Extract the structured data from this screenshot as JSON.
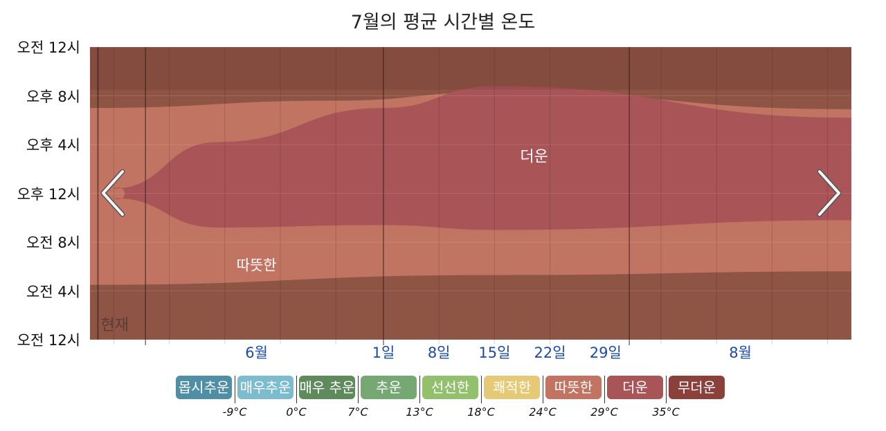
{
  "title": "7월의 평균 시간별 온도",
  "chart_data": {
    "type": "heatmap",
    "title": "7월의 평균 시간별 온도",
    "y_axis": {
      "range_hours": [
        0,
        24
      ],
      "tick_labels": [
        "오전 12시",
        "오전 4시",
        "오전 8시",
        "오후 12시",
        "오후 4시",
        "오후 8시",
        "오전 12시"
      ],
      "tick_hours": [
        0,
        4,
        8,
        12,
        16,
        20,
        24
      ]
    },
    "x_axis": {
      "range": [
        "05-25",
        "08-29"
      ],
      "tick_labels": [
        {
          "label": "6월",
          "date": "06-15"
        },
        {
          "label": "1일",
          "date": "07-01"
        },
        {
          "label": "8일",
          "date": "07-08"
        },
        {
          "label": "15일",
          "date": "07-15"
        },
        {
          "label": "22일",
          "date": "07-22"
        },
        {
          "label": "29일",
          "date": "07-29"
        },
        {
          "label": "8월",
          "date": "08-15"
        }
      ],
      "month_starts": [
        "06-01",
        "07-01",
        "08-01"
      ],
      "week_lines": [
        "05-28",
        "06-04",
        "06-11",
        "06-18",
        "06-25",
        "07-08",
        "07-15",
        "07-22",
        "08-05",
        "08-12",
        "08-19",
        "08-26"
      ]
    },
    "current_marker": {
      "label": "현재",
      "date": "05-26"
    },
    "regions": [
      {
        "category": "무더운",
        "color": "#8e5444",
        "description": "evening/night band",
        "hour_range": [
          0,
          24
        ]
      },
      {
        "category": "따뜻한",
        "color": "#c27462",
        "label": "따뜻한",
        "upper_boundary": [
          {
            "date": "05-25",
            "hour": 19.0
          },
          {
            "date": "06-25",
            "hour": 19.6
          },
          {
            "date": "07-15",
            "hour": 20.3
          },
          {
            "date": "08-29",
            "hour": 18.9
          }
        ],
        "lower_boundary": [
          {
            "date": "05-25",
            "hour": 4.5
          },
          {
            "date": "07-15",
            "hour": 5.3
          },
          {
            "date": "08-29",
            "hour": 5.6
          }
        ]
      },
      {
        "category": "더운",
        "color": "#a95457",
        "label": "더운",
        "upper_boundary": [
          {
            "date": "05-28",
            "hour": 12.4
          },
          {
            "date": "06-10",
            "hour": 16.2
          },
          {
            "date": "07-01",
            "hour": 19.0
          },
          {
            "date": "07-15",
            "hour": 20.8
          },
          {
            "date": "08-29",
            "hour": 18.2
          }
        ],
        "lower_boundary": [
          {
            "date": "05-28",
            "hour": 11.6
          },
          {
            "date": "06-10",
            "hour": 9.2
          },
          {
            "date": "07-01",
            "hour": 9.4
          },
          {
            "date": "07-15",
            "hour": 9.0
          },
          {
            "date": "08-29",
            "hour": 9.8
          }
        ]
      }
    ],
    "legend": [
      {
        "label": "몹시추운",
        "color": "#4f8fa6"
      },
      {
        "label": "매우추운",
        "color": "#7cbccf"
      },
      {
        "label": "매우 추운",
        "color": "#5e8a5c"
      },
      {
        "label": "추운",
        "color": "#76a873"
      },
      {
        "label": "선선한",
        "color": "#92c06c"
      },
      {
        "label": "쾌적한",
        "color": "#e5c976"
      },
      {
        "label": "따뜻한",
        "color": "#c27462"
      },
      {
        "label": "더운",
        "color": "#a95457"
      },
      {
        "label": "무더운",
        "color": "#8b403c"
      }
    ],
    "thresholds": [
      "-9°C",
      "0°C",
      "7°C",
      "13°C",
      "18°C",
      "24°C",
      "29°C",
      "35°C"
    ]
  },
  "nav": {
    "prev_icon": "chevron-left-icon",
    "next_icon": "chevron-right-icon"
  }
}
